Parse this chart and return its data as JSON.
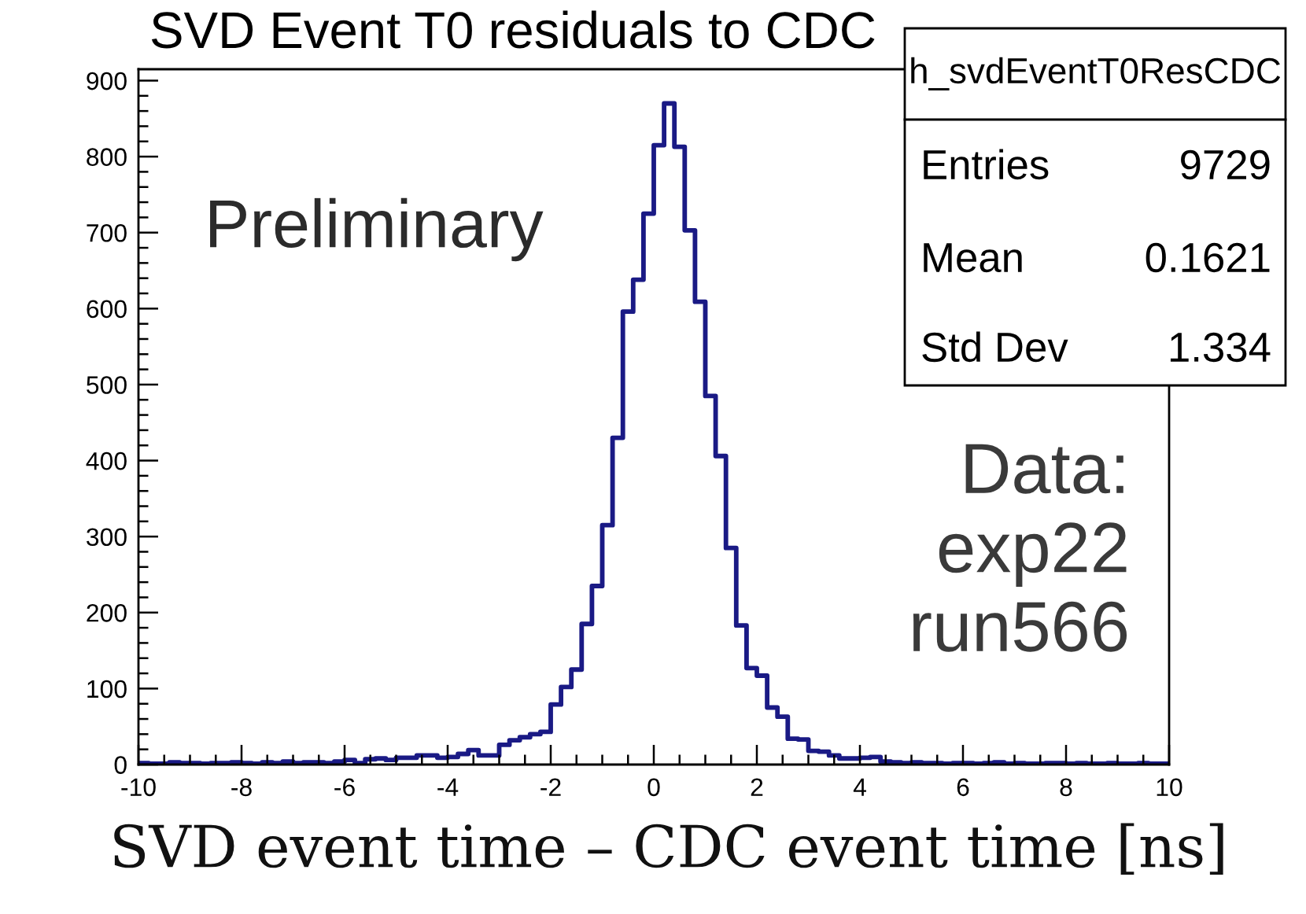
{
  "chart_data": {
    "type": "histogram",
    "title": "SVD Event T0 residuals to CDC",
    "xlabel": "SVD event time – CDC event time [ns]",
    "color": "#1a1a85",
    "bins": [
      -10,
      -9.8,
      -9.6,
      -9.4,
      -9.2,
      -9,
      -8.8,
      -8.6,
      -8.4,
      -8.2,
      -8,
      -7.8,
      -7.6,
      -7.4,
      -7.2,
      -7,
      -6.8,
      -6.6,
      -6.4,
      -6.2,
      -6,
      -5.8,
      -5.6,
      -5.4,
      -5.2,
      -5,
      -4.8,
      -4.6,
      -4.4,
      -4.2,
      -4,
      -3.8,
      -3.6,
      -3.4,
      -3.2,
      -3,
      -2.8,
      -2.6,
      -2.4,
      -2.2,
      -2,
      -1.8,
      -1.6,
      -1.4,
      -1.2,
      -1,
      -0.8,
      -0.6,
      -0.4,
      -0.2,
      0,
      0.2,
      0.4,
      0.6,
      0.8,
      1,
      1.2,
      1.4,
      1.6,
      1.8,
      2,
      2.2,
      2.4,
      2.6,
      2.8,
      3,
      3.2,
      3.4,
      3.6,
      3.8,
      4,
      4.2,
      4.4,
      4.6,
      4.8,
      5,
      5.2,
      5.4,
      5.6,
      5.8,
      6,
      6.2,
      6.4,
      6.6,
      6.8,
      7,
      7.2,
      7.4,
      7.6,
      7.8,
      8,
      8.2,
      8.4,
      8.6,
      8.8,
      9,
      9.2,
      9.4,
      9.6,
      9.8,
      10
    ],
    "values": [
      2,
      1,
      1,
      3,
      2,
      2,
      1,
      2,
      2,
      3,
      2,
      1,
      3,
      2,
      4,
      2,
      3,
      3,
      2,
      4,
      6,
      2,
      7,
      8,
      6,
      9,
      9,
      12,
      12,
      9,
      10,
      14,
      19,
      12,
      12,
      26,
      32,
      36,
      40,
      43,
      79,
      102,
      125,
      185,
      235,
      315,
      430,
      596,
      638,
      725,
      815,
      870,
      813,
      703,
      609,
      485,
      406,
      285,
      183,
      127,
      117,
      75,
      63,
      34,
      33,
      18,
      17,
      12,
      8,
      8,
      9,
      10,
      4,
      3,
      2,
      3,
      2,
      2,
      1,
      2,
      2,
      1,
      2,
      3,
      1,
      2,
      1,
      1,
      2,
      2,
      1,
      2,
      1,
      1,
      2,
      1,
      1,
      2,
      1,
      1
    ],
    "xlim": [
      -10,
      10
    ],
    "ylim": [
      0,
      915
    ],
    "xticks": [
      -10,
      {
        "value": -9.5,
        "label": null
      },
      {
        "value": -9,
        "label": null
      },
      {
        "value": -8.5,
        "label": null
      },
      -8,
      {
        "value": -7.5,
        "label": null
      },
      {
        "value": -7,
        "label": null
      },
      {
        "value": -6.5,
        "label": null
      },
      -6,
      {
        "value": -5.5,
        "label": null
      },
      {
        "value": -5,
        "label": null
      },
      {
        "value": -4.5,
        "label": null
      },
      -4,
      {
        "value": -3.5,
        "label": null
      },
      {
        "value": -3,
        "label": null
      },
      {
        "value": -2.5,
        "label": null
      },
      -2,
      {
        "value": -1.5,
        "label": null
      },
      {
        "value": -1,
        "label": null
      },
      {
        "value": -0.5,
        "label": null
      },
      0,
      {
        "value": 0.5,
        "label": null
      },
      {
        "value": 1,
        "label": null
      },
      {
        "value": 1.5,
        "label": null
      },
      2,
      {
        "value": 2.5,
        "label": null
      },
      {
        "value": 3,
        "label": null
      },
      {
        "value": 3.5,
        "label": null
      },
      4,
      {
        "value": 4.5,
        "label": null
      },
      {
        "value": 5,
        "label": null
      },
      {
        "value": 5.5,
        "label": null
      },
      6,
      {
        "value": 6.5,
        "label": null
      },
      {
        "value": 7,
        "label": null
      },
      {
        "value": 7.5,
        "label": null
      },
      8,
      {
        "value": 8.5,
        "label": null
      },
      {
        "value": 9,
        "label": null
      },
      {
        "value": 9.5,
        "label": null
      },
      10
    ],
    "yticks": [
      0,
      {
        "value": 20,
        "label": null
      },
      {
        "value": 40,
        "label": null
      },
      {
        "value": 60,
        "label": null
      },
      {
        "value": 80,
        "label": null
      },
      100,
      {
        "value": 120,
        "label": null
      },
      {
        "value": 140,
        "label": null
      },
      {
        "value": 160,
        "label": null
      },
      {
        "value": 180,
        "label": null
      },
      200,
      {
        "value": 220,
        "label": null
      },
      {
        "value": 240,
        "label": null
      },
      {
        "value": 260,
        "label": null
      },
      {
        "value": 280,
        "label": null
      },
      300,
      {
        "value": 320,
        "label": null
      },
      {
        "value": 340,
        "label": null
      },
      {
        "value": 360,
        "label": null
      },
      {
        "value": 380,
        "label": null
      },
      400,
      {
        "value": 420,
        "label": null
      },
      {
        "value": 440,
        "label": null
      },
      {
        "value": 460,
        "label": null
      },
      {
        "value": 480,
        "label": null
      },
      500,
      {
        "value": 520,
        "label": null
      },
      {
        "value": 540,
        "label": null
      },
      {
        "value": 560,
        "label": null
      },
      {
        "value": 580,
        "label": null
      },
      600,
      {
        "value": 620,
        "label": null
      },
      {
        "value": 640,
        "label": null
      },
      {
        "value": 660,
        "label": null
      },
      {
        "value": 680,
        "label": null
      },
      700,
      {
        "value": 720,
        "label": null
      },
      {
        "value": 740,
        "label": null
      },
      {
        "value": 760,
        "label": null
      },
      {
        "value": 780,
        "label": null
      },
      800,
      {
        "value": 820,
        "label": null
      },
      {
        "value": 840,
        "label": null
      },
      {
        "value": 860,
        "label": null
      },
      {
        "value": 880,
        "label": null
      },
      900
    ],
    "annotations": [
      "Preliminary",
      "Data:\nexp22\nrun566",
      "h_svdEventT0ResCDC",
      "Entries",
      "9729",
      "Mean",
      "0.1621",
      "Std Dev",
      "1.334"
    ]
  }
}
